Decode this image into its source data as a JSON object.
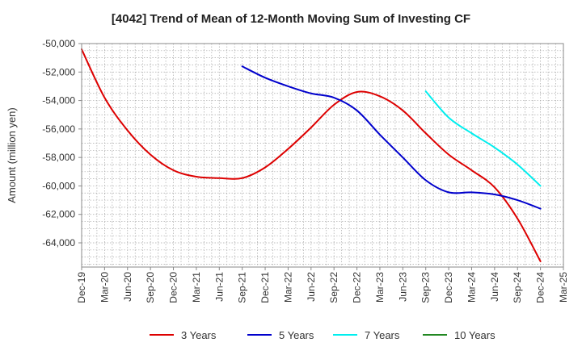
{
  "chart_data": {
    "type": "line",
    "title": "[4042]  Trend of Mean of 12-Month Moving Sum of Investing CF",
    "xlabel": "",
    "ylabel": "Amount (million yen)",
    "ylim": [
      -65700,
      -50000
    ],
    "yticks": [
      -50000,
      -52000,
      -54000,
      -56000,
      -58000,
      -60000,
      -62000,
      -64000
    ],
    "ytick_labels": [
      "-50,000",
      "-52,000",
      "-54,000",
      "-56,000",
      "-58,000",
      "-60,000",
      "-62,000",
      "-64,000"
    ],
    "categories": [
      "Dec-19",
      "Mar-20",
      "Jun-20",
      "Sep-20",
      "Dec-20",
      "Mar-21",
      "Jun-21",
      "Sep-21",
      "Dec-21",
      "Mar-22",
      "Jun-22",
      "Sep-22",
      "Dec-22",
      "Mar-23",
      "Jun-23",
      "Sep-23",
      "Dec-23",
      "Mar-24",
      "Jun-24",
      "Sep-24",
      "Dec-24",
      "Mar-25"
    ],
    "grid": true,
    "legend_position": "bottom",
    "series": [
      {
        "name": "3 Years",
        "color": "#dd0000",
        "values": [
          -50400,
          -53800,
          -56100,
          -57800,
          -58900,
          -59350,
          -59450,
          -59450,
          -58700,
          -57400,
          -55900,
          -54300,
          -53400,
          -53700,
          -54700,
          -56300,
          -57800,
          -58900,
          -60100,
          -62300,
          -65300,
          null
        ]
      },
      {
        "name": "5 Years",
        "color": "#0000cc",
        "values": [
          null,
          null,
          null,
          null,
          null,
          null,
          null,
          -51600,
          -52400,
          -53000,
          -53500,
          -53800,
          -54700,
          -56400,
          -58000,
          -59600,
          -60450,
          -60450,
          -60600,
          -61000,
          -61600,
          null
        ]
      },
      {
        "name": "7 Years",
        "color": "#00eeee",
        "values": [
          null,
          null,
          null,
          null,
          null,
          null,
          null,
          null,
          null,
          null,
          null,
          null,
          null,
          null,
          null,
          -53350,
          -55200,
          -56300,
          -57300,
          -58500,
          -60000,
          null
        ]
      },
      {
        "name": "10 Years",
        "color": "#228822",
        "values": [
          null,
          null,
          null,
          null,
          null,
          null,
          null,
          null,
          null,
          null,
          null,
          null,
          null,
          null,
          null,
          null,
          null,
          null,
          null,
          null,
          null,
          null
        ]
      }
    ]
  }
}
